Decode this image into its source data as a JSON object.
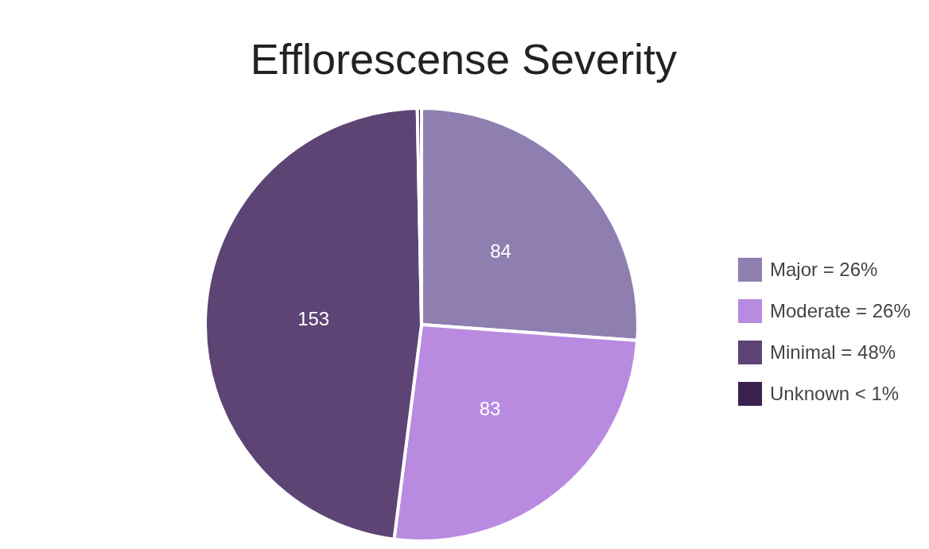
{
  "chart_data": {
    "type": "pie",
    "title": "Efflorescense Severity",
    "categories": [
      "Major = 26%",
      "Moderate = 26%",
      "Minimal = 48%",
      "Unknown < 1%"
    ],
    "values": [
      84,
      83,
      153,
      1
    ],
    "value_labels": [
      "84",
      "83",
      "153",
      null
    ],
    "colors": [
      "#8e7fb0",
      "#b98be0",
      "#5e4475",
      "#3a1f4f"
    ],
    "legend": "right"
  }
}
